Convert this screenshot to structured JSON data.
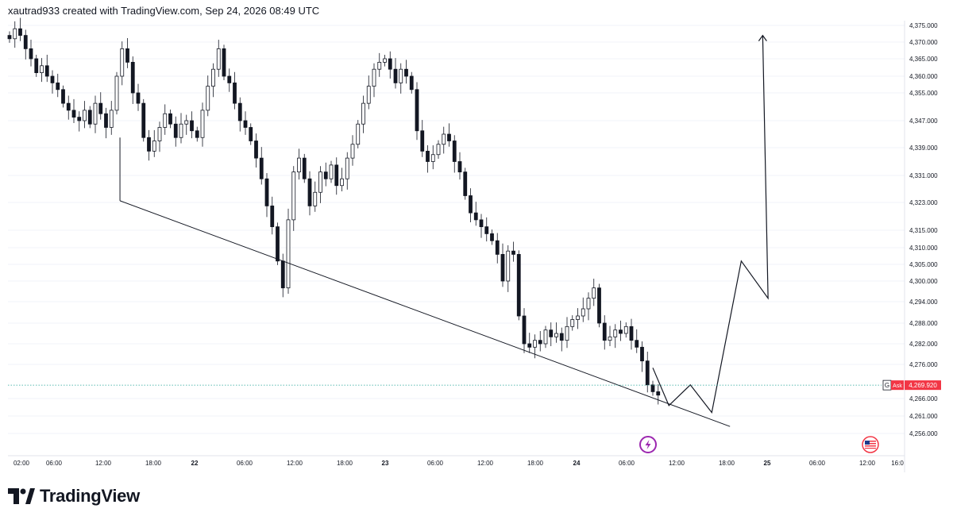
{
  "header": {
    "text": "xautrad933 created with TradingView.com, Sep 24, 2026 08:49 UTC"
  },
  "footer": {
    "brand": "TradingView"
  },
  "colors": {
    "up": "#131722",
    "down": "#131722",
    "grid": "#f0f3fa",
    "trend": "#131722",
    "ask_line": "#26a69a",
    "ask_badge": "#f23645"
  },
  "chart_data": {
    "type": "candlestick",
    "y_axis": {
      "ticks": [
        4375,
        4370,
        4365,
        4360,
        4355,
        4347,
        4339,
        4331,
        4323,
        4315,
        4310,
        4305,
        4300,
        4294,
        4288,
        4282,
        4276,
        4266,
        4261,
        4256
      ],
      "tick_labels": [
        "4,375.000",
        "4,370.000",
        "4,365.000",
        "4,360.000",
        "4,355.000",
        "4,347.000",
        "4,339.000",
        "4,331.000",
        "4,323.000",
        "4,315.000",
        "4,310.000",
        "4,305.000",
        "4,300.000",
        "4,294.000",
        "4,288.000",
        "4,282.000",
        "4,276.000",
        "4,266.000",
        "4,261.000",
        "4,256.000"
      ]
    },
    "x_axis": {
      "ticks": [
        {
          "label": "02:00",
          "bold": false
        },
        {
          "label": "06:00",
          "bold": false
        },
        {
          "label": "12:00",
          "bold": false
        },
        {
          "label": "18:00",
          "bold": false
        },
        {
          "label": "22",
          "bold": true
        },
        {
          "label": "06:00",
          "bold": false
        },
        {
          "label": "12:00",
          "bold": false
        },
        {
          "label": "18:00",
          "bold": false
        },
        {
          "label": "23",
          "bold": true
        },
        {
          "label": "06:00",
          "bold": false
        },
        {
          "label": "12:00",
          "bold": false
        },
        {
          "label": "18:00",
          "bold": false
        },
        {
          "label": "24",
          "bold": true
        },
        {
          "label": "06:00",
          "bold": false
        },
        {
          "label": "12:00",
          "bold": false
        },
        {
          "label": "18:00",
          "bold": false
        },
        {
          "label": "25",
          "bold": true
        },
        {
          "label": "06:00",
          "bold": false
        },
        {
          "label": "12:00",
          "bold": false
        },
        {
          "label": "16:0",
          "bold": false
        }
      ]
    },
    "ask": {
      "label": "Ask",
      "marker": "G",
      "price": "4,269.920",
      "value": 4269.92
    },
    "closes": [
      4371,
      4374,
      4372,
      4368,
      4365,
      4361,
      4363,
      4360,
      4358,
      4356,
      4352,
      4350,
      4348,
      4347,
      4350,
      4346,
      4352,
      4349,
      4345,
      4350,
      4360,
      4368,
      4364,
      4355,
      4352,
      4342,
      4338,
      4341,
      4345,
      4349,
      4346,
      4342,
      4346,
      4347,
      4344,
      4342,
      4350,
      4357,
      4362,
      4368,
      4360,
      4358,
      4352,
      4347,
      4345,
      4341,
      4336,
      4330,
      4322,
      4316,
      4306,
      4298,
      4318,
      4332,
      4336,
      4330,
      4322,
      4326,
      4332,
      4330,
      4334,
      4328,
      4330,
      4336,
      4340,
      4346,
      4352,
      4357,
      4362,
      4364,
      4365,
      4362,
      4358,
      4362,
      4360,
      4356,
      4344,
      4338,
      4335,
      4337,
      4340,
      4343,
      4341,
      4335,
      4332,
      4325,
      4320,
      4318,
      4316,
      4314,
      4312,
      4308,
      4300,
      4309,
      4308,
      4290,
      4282,
      4281,
      4283,
      4282,
      4286,
      4284,
      4285,
      4283,
      4287,
      4289,
      4290,
      4292,
      4295,
      4298,
      4288,
      4283,
      4284,
      4286,
      4285,
      4287,
      4283,
      4281,
      4277,
      4270,
      4268,
      4267
    ]
  },
  "drawings": {
    "trendline": {
      "t0": 32.0,
      "p0": 4323.5,
      "t1": 172.0,
      "p1": 4258.0
    },
    "projection": [
      {
        "t": 150.0,
        "p": 4275
      },
      {
        "t": 153.0,
        "p": 4264
      },
      {
        "t": 157.0,
        "p": 4270
      },
      {
        "t": 161.0,
        "p": 4262
      },
      {
        "t": 166.5,
        "p": 4306
      },
      {
        "t": 171.5,
        "p": 4295
      },
      {
        "t": 170.5,
        "p": 4372
      }
    ]
  }
}
